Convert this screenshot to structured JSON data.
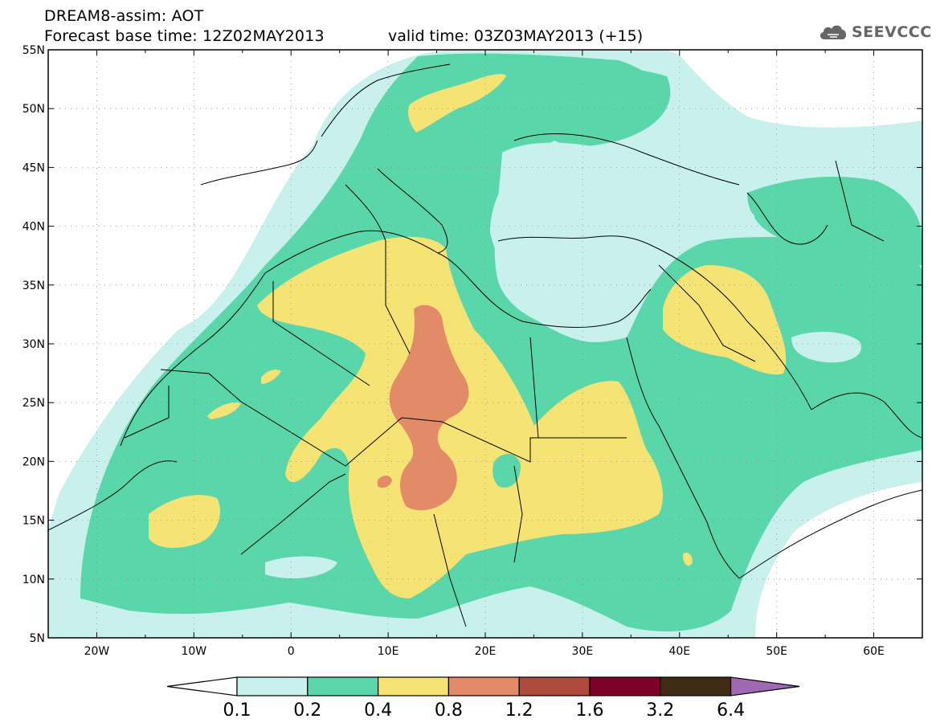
{
  "header": {
    "title": "DREAM8-assim: AOT",
    "base_time": "Forecast base time: 12Z02MAY2013",
    "valid_time": "valid time: 03Z03MAY2013 (+15)"
  },
  "logo": {
    "text": "SEEVCCC",
    "icon": "cloud-icon"
  },
  "map": {
    "lon_labels": [
      "20W",
      "10W",
      "0",
      "10E",
      "20E",
      "30E",
      "40E",
      "50E",
      "60E"
    ],
    "lat_labels": [
      "55N",
      "50N",
      "45N",
      "40N",
      "35N",
      "30N",
      "25N",
      "20N",
      "15N",
      "10N",
      "5N"
    ],
    "lon_range": [
      -25,
      65
    ],
    "lat_range": [
      5,
      55
    ],
    "grid": "dotted"
  },
  "colorbar": {
    "levels": [
      "0.1",
      "0.2",
      "0.4",
      "0.8",
      "1.2",
      "1.6",
      "3.2",
      "6.4"
    ],
    "colors": [
      "#c8f0ec",
      "#5ad6ab",
      "#f5e374",
      "#e38a66",
      "#ad4c3c",
      "#7d0028",
      "#3f2b16",
      "#9f6ab3"
    ]
  }
}
